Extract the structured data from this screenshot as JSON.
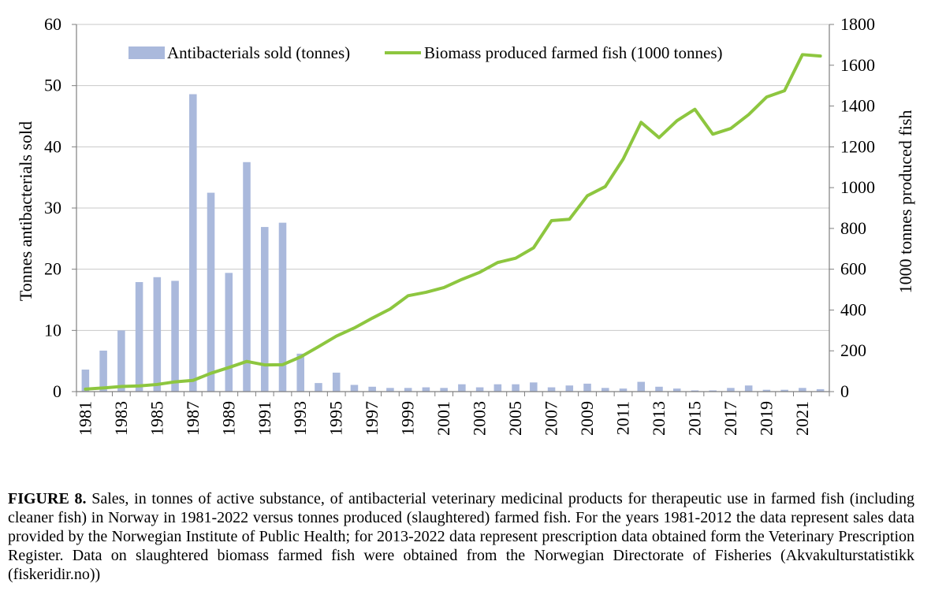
{
  "chart_data": {
    "type": "bar+line",
    "title": "",
    "xlabel": "",
    "ylabel": "Tonnes antibacterials sold",
    "y2label": "1000 tonnes produced fish",
    "ylim": [
      0,
      60
    ],
    "y2lim": [
      0,
      1800
    ],
    "yticks": [
      0,
      10,
      20,
      30,
      40,
      50,
      60
    ],
    "y2ticks": [
      0,
      200,
      400,
      600,
      800,
      1000,
      1200,
      1400,
      1600,
      1800
    ],
    "categories": [
      1981,
      1982,
      1983,
      1984,
      1985,
      1986,
      1987,
      1988,
      1989,
      1990,
      1991,
      1992,
      1993,
      1994,
      1995,
      1996,
      1997,
      1998,
      1999,
      2000,
      2001,
      2002,
      2003,
      2004,
      2005,
      2006,
      2007,
      2008,
      2009,
      2010,
      2011,
      2012,
      2013,
      2014,
      2015,
      2016,
      2017,
      2018,
      2019,
      2020,
      2021,
      2022
    ],
    "xtick_labels": [
      "1981",
      "1983",
      "1985",
      "1987",
      "1989",
      "1991",
      "1993",
      "1995",
      "1997",
      "1999",
      "2001",
      "2003",
      "2005",
      "2007",
      "2009",
      "2011",
      "2013",
      "2015",
      "2017",
      "2019",
      "2021"
    ],
    "series": [
      {
        "name": "Antibacterials sold (tonnes)",
        "type": "bar",
        "axis": "left",
        "color": "#aab9dc",
        "values": [
          3.6,
          6.7,
          10.0,
          17.9,
          18.7,
          18.1,
          48.6,
          32.5,
          19.4,
          37.5,
          26.9,
          27.6,
          6.2,
          1.4,
          3.1,
          1.1,
          0.8,
          0.6,
          0.6,
          0.7,
          0.6,
          1.2,
          0.7,
          1.2,
          1.2,
          1.5,
          0.7,
          1.0,
          1.3,
          0.6,
          0.5,
          1.6,
          0.8,
          0.5,
          0.2,
          0.2,
          0.6,
          1.0,
          0.3,
          0.3,
          0.6,
          0.4
        ]
      },
      {
        "name": "Biomass produced farmed fish (1000 tonnes)",
        "type": "line",
        "axis": "right",
        "color": "#8dc63f",
        "values": [
          12,
          18,
          25,
          28,
          35,
          48,
          55,
          90,
          118,
          148,
          131,
          132,
          170,
          220,
          272,
          312,
          360,
          405,
          470,
          487,
          510,
          550,
          585,
          633,
          654,
          705,
          838,
          845,
          960,
          1005,
          1140,
          1320,
          1245,
          1328,
          1384,
          1262,
          1290,
          1358,
          1444,
          1475,
          1652,
          1645
        ]
      }
    ],
    "legend": [
      "Antibacterials sold (tonnes)",
      "Biomass produced farmed fish (1000 tonnes)"
    ],
    "legend_position": "top"
  },
  "caption": {
    "label": "FIGURE 8.",
    "text": " Sales, in tonnes of active substance, of antibacterial veterinary medicinal products for therapeutic use in farmed fish (including cleaner fish) in Norway in 1981-2022 versus tonnes produced (slaughtered) farmed fish. For the years 1981-2012 the data represent sales data provided by the Norwegian Institute of Public Health; for 2013-2022 data represent prescription data obtained form the Veterinary Prescription Register. Data on slaughtered biomass farmed fish were obtained from the Norwegian Directorate of Fisheries (Akvakulturstatistikk (fiskeridir.no))"
  }
}
